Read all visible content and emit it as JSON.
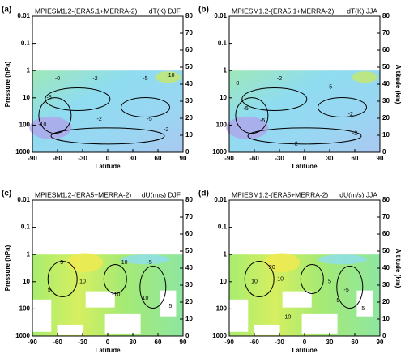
{
  "chart_data": [
    {
      "type": "contour",
      "panel": "(a)",
      "title": "MPIESM1.2-(ERA5.1+MERRA-2)",
      "subtitle": "dT(K) DJF",
      "xlabel": "Latitude",
      "ylabel": "Pressure (hPa)",
      "xlim": [
        -90,
        90
      ],
      "xticks": [
        -90,
        -60,
        -30,
        0,
        30,
        60,
        90
      ],
      "ylim": [
        1000,
        0.01
      ],
      "yticks": [
        0.01,
        0.1,
        1,
        10,
        100,
        1000
      ],
      "log": true,
      "y2lim": [
        0,
        80
      ],
      "y2ticks": [
        0,
        10,
        20,
        30,
        40,
        50,
        60,
        70,
        80
      ],
      "fill": "temperature",
      "annotations": [
        {
          "text": "-0",
          "x": -60,
          "y": 2
        },
        {
          "text": "-2",
          "x": -15,
          "y": 2
        },
        {
          "text": "-5",
          "x": 45,
          "y": 2
        },
        {
          "text": "-10",
          "x": 75,
          "y": 1.5
        },
        {
          "text": "-5",
          "x": -70,
          "y": 10
        },
        {
          "text": "-2",
          "x": -10,
          "y": 60
        },
        {
          "text": "-10",
          "x": -78,
          "y": 100
        },
        {
          "text": "-5",
          "x": 50,
          "y": 60
        },
        {
          "text": "-2",
          "x": 70,
          "y": 150
        }
      ]
    },
    {
      "type": "contour",
      "panel": "(b)",
      "title": "MPIESM1.2-(ERA5.1+MERRA-2)",
      "subtitle": "dT(K) JJA",
      "xlabel": "Latitude",
      "y2label": "Altitude (km)",
      "xlim": [
        -90,
        90
      ],
      "xticks": [
        -90,
        -60,
        -30,
        0,
        30,
        60,
        90
      ],
      "ylim": [
        1000,
        0.01
      ],
      "yticks": [
        0.01,
        0.1,
        1,
        10,
        100,
        1000
      ],
      "log": true,
      "y2lim": [
        0,
        80
      ],
      "y2ticks": [
        0,
        10,
        20,
        30,
        40,
        50,
        60,
        70,
        80
      ],
      "fill": "temperature",
      "annotations": [
        {
          "text": "0",
          "x": -80,
          "y": 3
        },
        {
          "text": "-2",
          "x": -30,
          "y": 2
        },
        {
          "text": "-5",
          "x": 30,
          "y": 4
        },
        {
          "text": "-5",
          "x": -70,
          "y": 25
        },
        {
          "text": "-2",
          "x": 55,
          "y": 40
        },
        {
          "text": "-2",
          "x": 60,
          "y": 200
        },
        {
          "text": "-5",
          "x": -50,
          "y": 70
        },
        {
          "text": "2",
          "x": -10,
          "y": 500
        }
      ]
    },
    {
      "type": "contour",
      "panel": "(c)",
      "title": "MPIESM1.2-(ERA5+MERRA-2)",
      "subtitle": "dU(m/s) DJF",
      "xlabel": "Latitude",
      "ylabel": "Pressure (hPa)",
      "xlim": [
        -90,
        90
      ],
      "xticks": [
        -90,
        -60,
        -30,
        0,
        30,
        60,
        90
      ],
      "ylim": [
        1000,
        0.01
      ],
      "yticks": [
        0.01,
        0.1,
        1,
        10,
        100,
        1000
      ],
      "log": true,
      "y2lim": [
        0,
        80
      ],
      "y2ticks": [
        0,
        10,
        20,
        30,
        40,
        50,
        60,
        70,
        80
      ],
      "fill": "wind",
      "annotations": [
        {
          "text": "5",
          "x": -55,
          "y": 2
        },
        {
          "text": "10",
          "x": 20,
          "y": 2
        },
        {
          "text": "-5",
          "x": 50,
          "y": 2
        },
        {
          "text": "5",
          "x": -70,
          "y": 20
        },
        {
          "text": "10",
          "x": -30,
          "y": 10
        },
        {
          "text": "-10",
          "x": 10,
          "y": 30
        },
        {
          "text": "10",
          "x": 45,
          "y": 40
        },
        {
          "text": "5",
          "x": 75,
          "y": 80
        }
      ]
    },
    {
      "type": "contour",
      "panel": "(d)",
      "title": "MPIESM1.2-(ERA5+MERRA-2)",
      "subtitle": "dU(m/s) JJA",
      "xlabel": "Latitude",
      "y2label": "Altitude (km)",
      "xlim": [
        -90,
        90
      ],
      "xticks": [
        -90,
        -60,
        -30,
        0,
        30,
        60,
        90
      ],
      "ylim": [
        1000,
        0.01
      ],
      "yticks": [
        0.01,
        0.1,
        1,
        10,
        100,
        1000
      ],
      "log": true,
      "y2lim": [
        0,
        80
      ],
      "y2ticks": [
        0,
        10,
        20,
        30,
        40,
        50,
        60,
        70,
        80
      ],
      "fill": "wind",
      "annotations": [
        {
          "text": "-20",
          "x": -40,
          "y": 3
        },
        {
          "text": "-10",
          "x": -30,
          "y": 8
        },
        {
          "text": "5",
          "x": 30,
          "y": 10
        },
        {
          "text": "10",
          "x": -60,
          "y": 10
        },
        {
          "text": "-5",
          "x": 50,
          "y": 20
        },
        {
          "text": "5",
          "x": 40,
          "y": 50
        },
        {
          "text": "10",
          "x": -20,
          "y": 200
        },
        {
          "text": "5",
          "x": 70,
          "y": 100
        }
      ]
    }
  ]
}
